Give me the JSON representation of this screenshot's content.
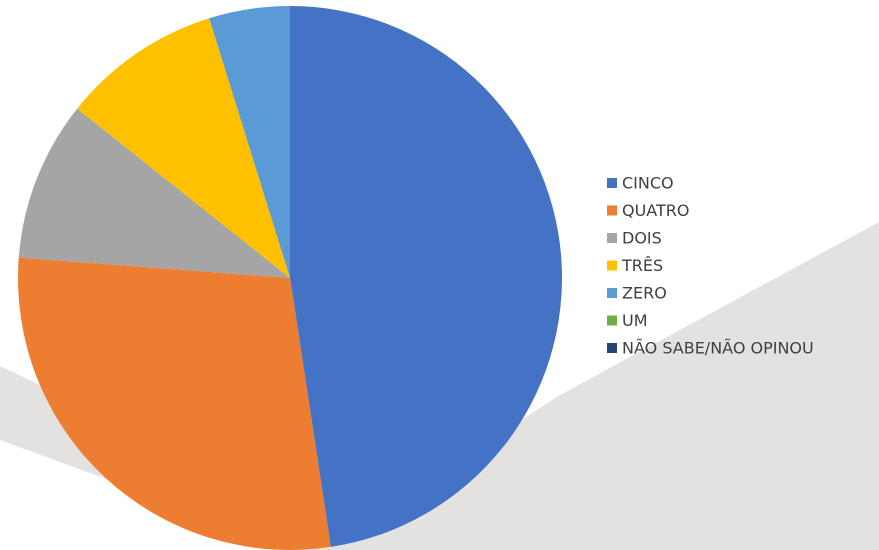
{
  "chart_data": {
    "type": "pie",
    "categories": [
      "CINCO",
      "QUATRO",
      "DOIS",
      "TRÊS",
      "ZERO",
      "UM",
      "NÃO SABE/NÃO OPINOU"
    ],
    "values": [
      47.6,
      28.6,
      9.5,
      9.5,
      4.8,
      0,
      0
    ],
    "colors": [
      "#4472c4",
      "#ed7d31",
      "#a5a5a5",
      "#ffc000",
      "#5b9bd5",
      "#70ad47",
      "#264478"
    ],
    "legend": "right"
  }
}
